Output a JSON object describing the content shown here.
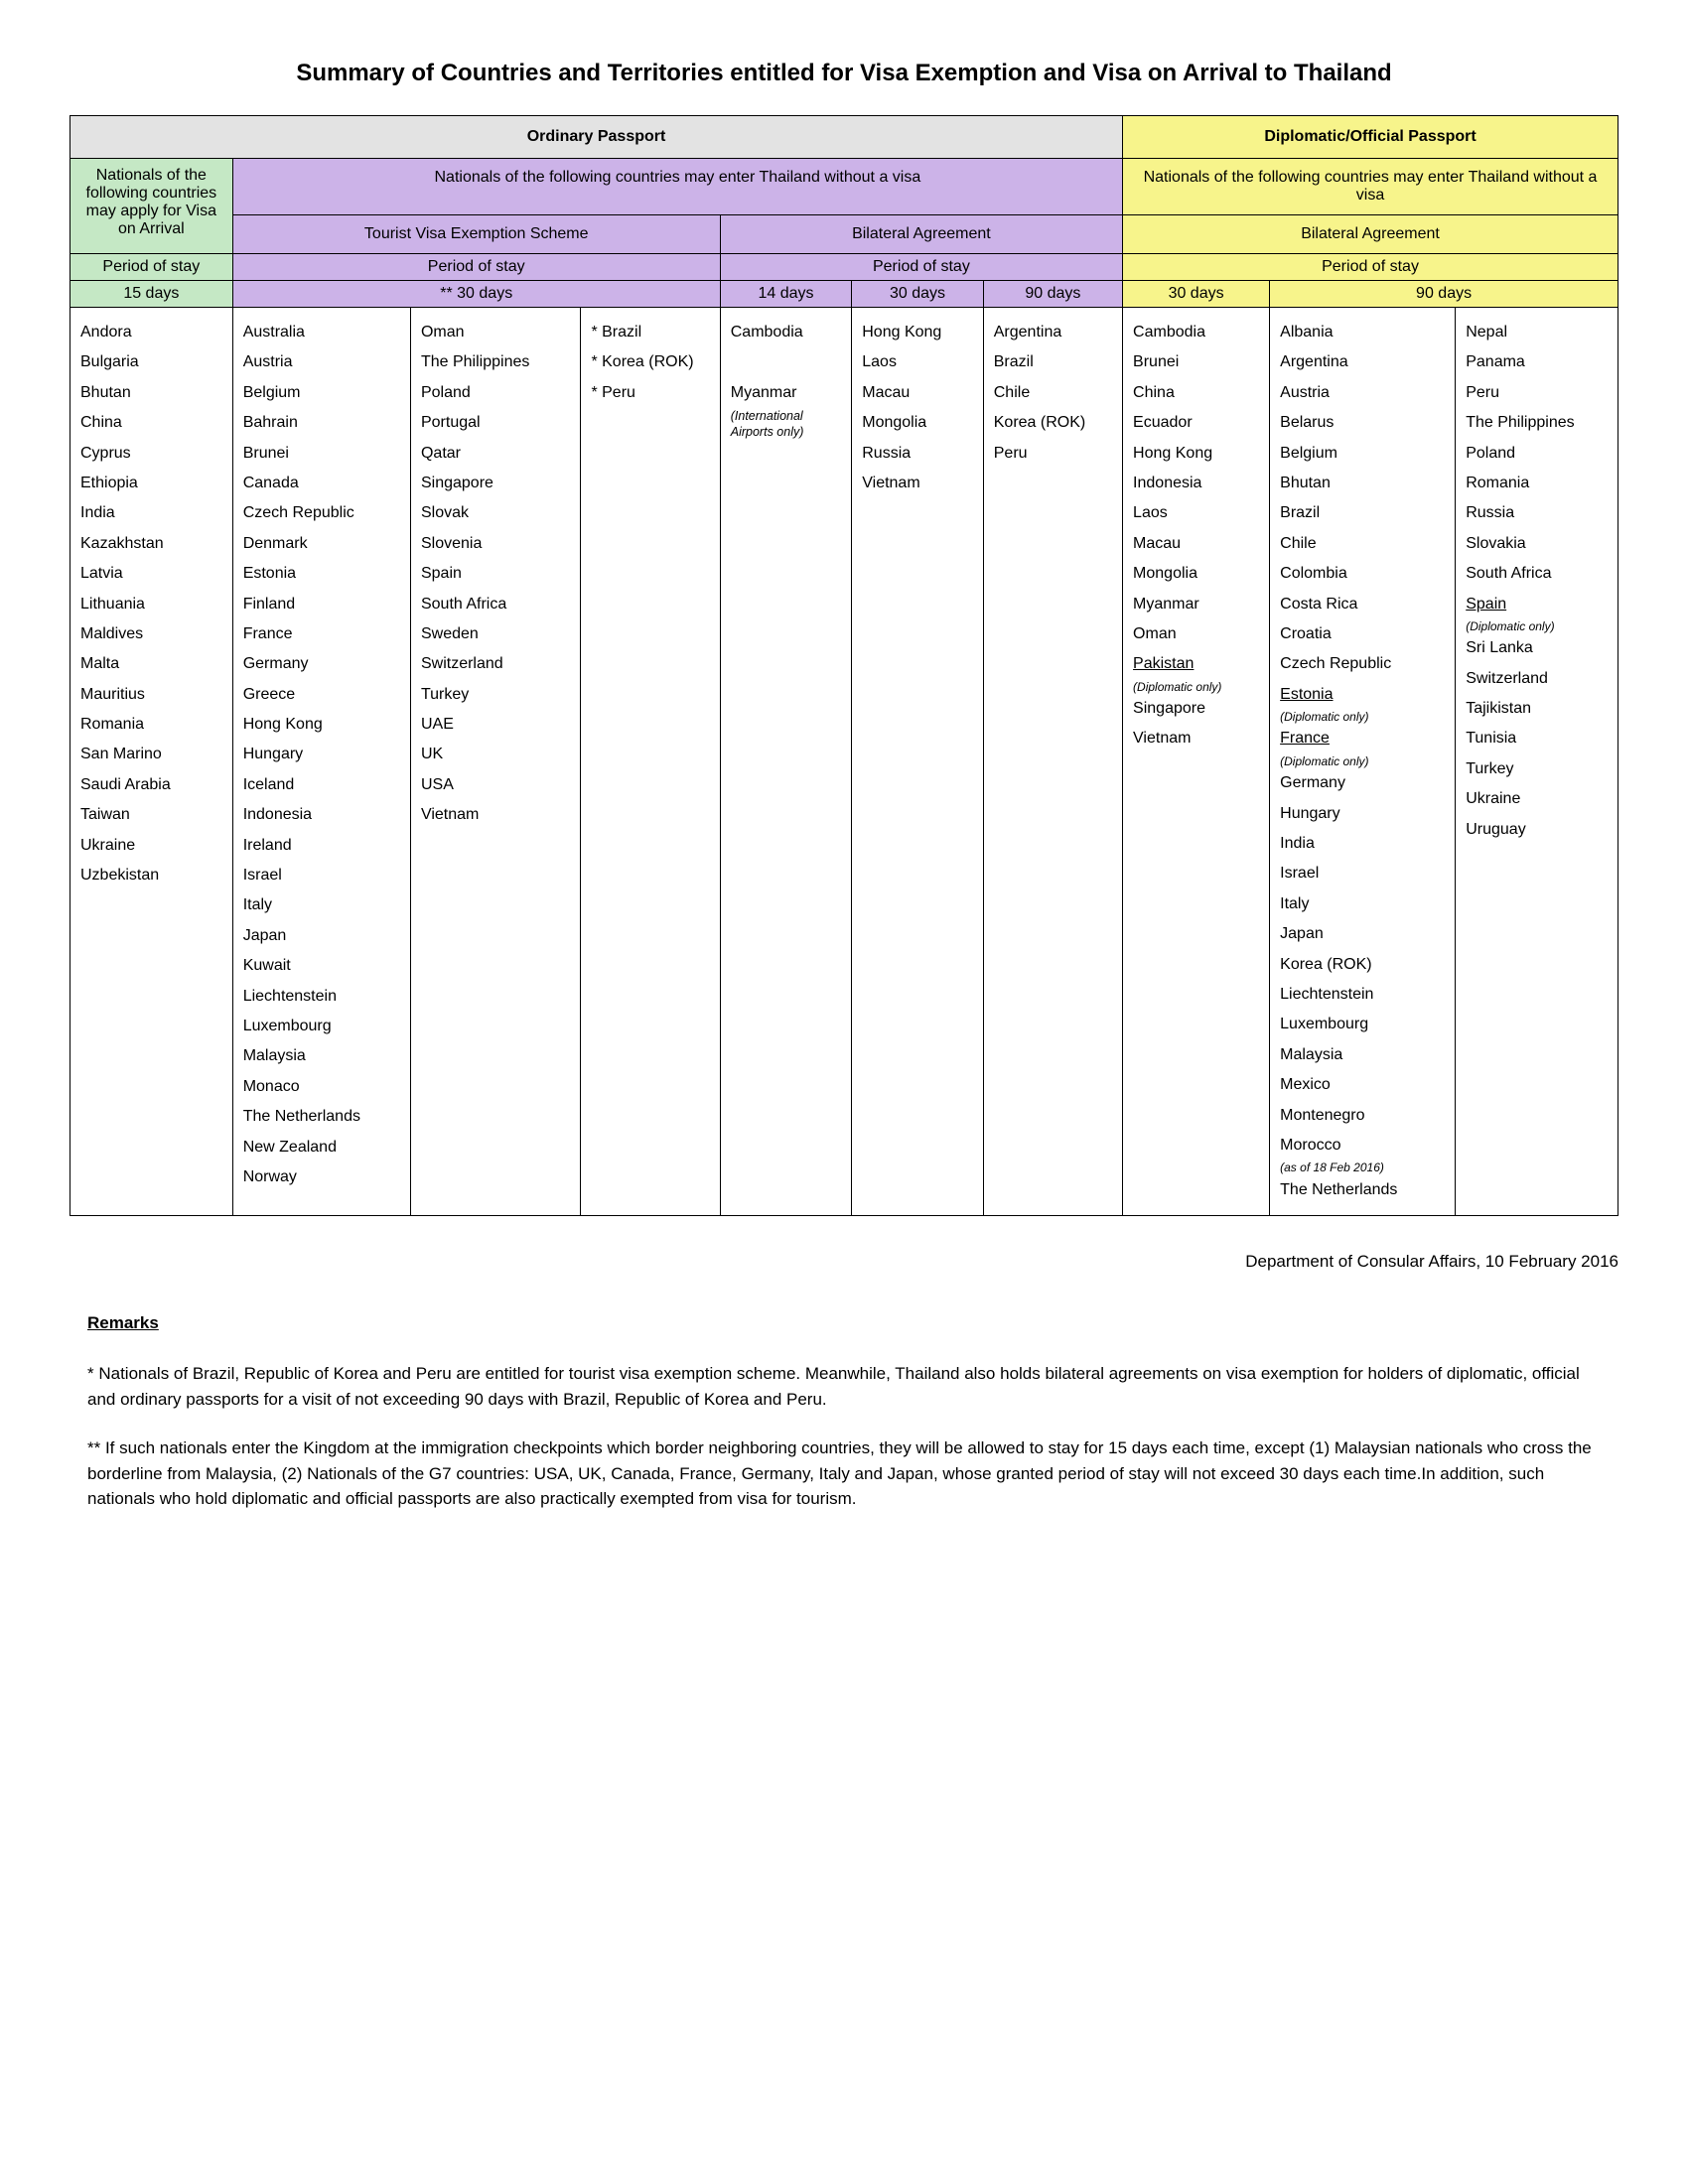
{
  "title": "Summary of Countries and Territories entitled for Visa Exemption and Visa on Arrival to Thailand",
  "headers": {
    "ordinary": "Ordinary Passport",
    "diplomatic": "Diplomatic/Official Passport",
    "voa_desc": "Nationals of the following countries may apply for Visa on Arrival",
    "ordinary_novisa": "Nationals of the following countries may enter Thailand without a visa",
    "tourist_scheme": "Tourist Visa Exemption Scheme",
    "bilateral": "Bilateral Agreement",
    "diplomatic_novisa": "Nationals of the following countries may enter Thailand without a visa",
    "diplomatic_bilateral": "Bilateral Agreement",
    "period": "Period of stay",
    "d15": "15 days",
    "d30star": "** 30 days",
    "d14": "14 days",
    "d30": "30 days",
    "d90": "90 days"
  },
  "voa_15": [
    "Andora",
    "Bulgaria",
    "Bhutan",
    "China",
    "Cyprus",
    "Ethiopia",
    "India",
    "Kazakhstan",
    "Latvia",
    "Lithuania",
    "Maldives",
    "Malta",
    "Mauritius",
    "Romania",
    "San Marino",
    "Saudi Arabia",
    "Taiwan",
    "Ukraine",
    "Uzbekistan"
  ],
  "tourist_30_a": [
    "Australia",
    "Austria",
    "Belgium",
    "Bahrain",
    "Brunei",
    "Canada",
    "Czech Republic",
    "Denmark",
    "Estonia",
    "Finland",
    "France",
    "Germany",
    "Greece",
    "Hong Kong",
    "Hungary",
    "Iceland",
    "Indonesia",
    "Ireland",
    "Israel",
    "Italy",
    "Japan",
    "Kuwait",
    "Liechtenstein",
    "Luxembourg",
    "Malaysia",
    "Monaco",
    "The Netherlands",
    "New Zealand",
    "Norway"
  ],
  "tourist_30_b": [
    "Oman",
    "The Philippines",
    "Poland",
    "Portugal",
    "Qatar",
    "Singapore",
    "Slovak",
    "Slovenia",
    "Spain",
    "South Africa",
    "Sweden",
    "Switzerland",
    "Turkey",
    "UAE",
    "UK",
    "USA",
    "Vietnam"
  ],
  "tourist_30_c": [
    "* Brazil",
    "* Korea (ROK)",
    "* Peru"
  ],
  "bilat_14": [
    {
      "text": "Cambodia"
    },
    {
      "text": ""
    },
    {
      "text": "Myanmar"
    },
    {
      "text": "(International Airports only)",
      "note": true
    }
  ],
  "bilat_30": [
    "Hong Kong",
    "Laos",
    "Macau",
    "Mongolia",
    "Russia",
    "Vietnam"
  ],
  "bilat_90": [
    "Argentina",
    "Brazil",
    "Chile",
    "Korea (ROK)",
    "Peru"
  ],
  "dip_30": [
    {
      "text": "Cambodia"
    },
    {
      "text": "Brunei"
    },
    {
      "text": "China"
    },
    {
      "text": "Ecuador"
    },
    {
      "text": "Hong Kong"
    },
    {
      "text": "Indonesia"
    },
    {
      "text": "Laos"
    },
    {
      "text": "Macau"
    },
    {
      "text": "Mongolia"
    },
    {
      "text": "Myanmar"
    },
    {
      "text": "Oman"
    },
    {
      "text": "Pakistan",
      "u": true
    },
    {
      "text": "(Diplomatic only)",
      "sub": true
    },
    {
      "text": "Singapore"
    },
    {
      "text": "Vietnam"
    }
  ],
  "dip_90_a": [
    {
      "text": "Albania"
    },
    {
      "text": "Argentina"
    },
    {
      "text": "Austria"
    },
    {
      "text": "Belarus"
    },
    {
      "text": "Belgium"
    },
    {
      "text": "Bhutan"
    },
    {
      "text": "Brazil"
    },
    {
      "text": "Chile"
    },
    {
      "text": "Colombia"
    },
    {
      "text": "Costa Rica"
    },
    {
      "text": "Croatia"
    },
    {
      "text": "Czech Republic"
    },
    {
      "text": "Estonia",
      "u": true
    },
    {
      "text": "(Diplomatic only)",
      "sub": true
    },
    {
      "text": "France",
      "u": true
    },
    {
      "text": "(Diplomatic only)",
      "sub": true
    },
    {
      "text": "Germany"
    },
    {
      "text": "Hungary"
    },
    {
      "text": "India"
    },
    {
      "text": "Israel"
    },
    {
      "text": "Italy"
    },
    {
      "text": "Japan"
    },
    {
      "text": "Korea (ROK)"
    },
    {
      "text": "Liechtenstein"
    },
    {
      "text": "Luxembourg"
    },
    {
      "text": "Malaysia"
    },
    {
      "text": "Mexico"
    },
    {
      "text": "Montenegro"
    },
    {
      "text": "Morocco"
    },
    {
      "text": "(as of 18 Feb 2016)",
      "sub": true
    },
    {
      "text": "The Netherlands"
    }
  ],
  "dip_90_b": [
    {
      "text": "Nepal"
    },
    {
      "text": "Panama"
    },
    {
      "text": "Peru"
    },
    {
      "text": "The Philippines"
    },
    {
      "text": "Poland"
    },
    {
      "text": "Romania"
    },
    {
      "text": "Russia"
    },
    {
      "text": "Slovakia"
    },
    {
      "text": "South Africa"
    },
    {
      "text": "Spain",
      "u": true
    },
    {
      "text": "(Diplomatic only)",
      "sub": true
    },
    {
      "text": "Sri Lanka"
    },
    {
      "text": "Switzerland"
    },
    {
      "text": "Tajikistan"
    },
    {
      "text": "Tunisia"
    },
    {
      "text": "Turkey"
    },
    {
      "text": "Ukraine"
    },
    {
      "text": "Uruguay"
    }
  ],
  "footer": "Department of Consular Affairs, 10 February 2016",
  "remarks_label": "Remarks",
  "remark1": "* Nationals of Brazil, Republic of Korea and Peru are entitled for tourist visa exemption scheme. Meanwhile, Thailand also holds bilateral agreements on visa exemption for holders of diplomatic, official and ordinary passports for a visit of not exceeding 90 days with Brazil, Republic of Korea and Peru.",
  "remark2": "** If such nationals enter the Kingdom at the immigration checkpoints which border neighboring countries, they will be allowed to stay for 15 days each time, except (1) Malaysian nationals who cross the borderline from Malaysia, (2) Nationals of the G7 countries: USA, UK, Canada, France, Germany, Italy and Japan, whose granted period of stay will not exceed 30 days each time.In addition, such nationals who hold diplomatic and official passports are also practically exempted  from visa for tourism."
}
